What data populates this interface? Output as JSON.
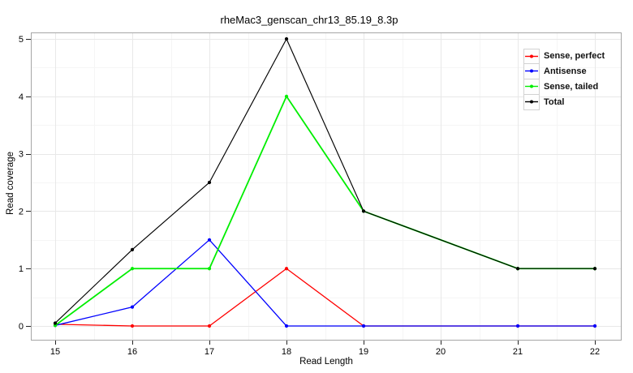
{
  "chart_data": {
    "type": "line",
    "title": "rheMac3_genscan_chr13_85.19_8.3p",
    "xlabel": "Read Length",
    "ylabel": "Read coverage",
    "x": [
      15,
      16,
      17,
      18,
      19,
      21,
      22
    ],
    "x_ticks": [
      15,
      16,
      17,
      18,
      19,
      20,
      21,
      22
    ],
    "y_ticks": [
      0,
      1,
      2,
      3,
      4,
      5
    ],
    "xlim": [
      14.684,
      22.347
    ],
    "ylim": [
      -0.254,
      5.113
    ],
    "grid": {
      "major": true,
      "minor": true,
      "minor_step": 0.5
    },
    "legend_position": "upper-right",
    "series": [
      {
        "name": "Sense, perfect",
        "color": "#ff0000",
        "values": [
          0.03,
          0,
          0,
          1,
          0,
          0,
          0
        ]
      },
      {
        "name": "Antisense",
        "color": "#0000ff",
        "values": [
          0.01,
          0.33,
          1.5,
          0,
          0,
          0,
          0
        ]
      },
      {
        "name": "Sense, tailed",
        "color": "#00ee00",
        "values": [
          0.01,
          1,
          1,
          4,
          2,
          1,
          1
        ]
      },
      {
        "name": "Total",
        "color": "#000000",
        "values": [
          0.05,
          1.33,
          2.5,
          5,
          2,
          1,
          1
        ]
      }
    ]
  },
  "style_colors": {
    "grid_major": "#e8e8e8",
    "grid_minor": "#f5f5f5",
    "plot_border": "#a6a6a6",
    "tick": "#262626",
    "tick_label": "#000000"
  }
}
